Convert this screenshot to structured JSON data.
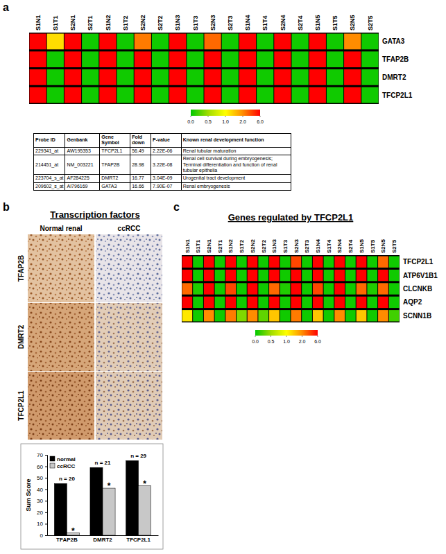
{
  "panel_labels": [
    "a",
    "b",
    "c"
  ],
  "chart_data": [
    {
      "type": "heatmap",
      "categories": [
        "S1N1",
        "S1T1",
        "S2N1",
        "S2T1",
        "S1N2",
        "S1T2",
        "S2N2",
        "S2T2",
        "S1N3",
        "S1T3",
        "S2N3",
        "S2T3",
        "S1N4",
        "S1T4",
        "S2N4",
        "S2T4",
        "S1N5",
        "S1T5",
        "S2N5",
        "S2T5"
      ],
      "rows": [
        "GATA3",
        "TFAP2B",
        "DMRT2",
        "TFCP2L1"
      ],
      "cells": [
        [
          6,
          1.3,
          6,
          0.05,
          6,
          0.05,
          2.5,
          0.05,
          6,
          0.05,
          3,
          0.05,
          6,
          0.05,
          6,
          0.05,
          6,
          0.05,
          2,
          0.05
        ],
        [
          6,
          0.05,
          6,
          0.05,
          6,
          0.05,
          6,
          0.05,
          6,
          0.05,
          6,
          0.05,
          6,
          0.05,
          6,
          0.05,
          6,
          0.05,
          6,
          0.05
        ],
        [
          6,
          0.05,
          6,
          0.05,
          6,
          0.05,
          6,
          0.05,
          6,
          0.05,
          6,
          0.05,
          6,
          0.05,
          6,
          0.05,
          6,
          0.05,
          6,
          0.05
        ],
        [
          6,
          0.05,
          6,
          0.05,
          6,
          0.05,
          6,
          0.05,
          6,
          0.05,
          6,
          0.05,
          6,
          0.05,
          6,
          0.05,
          6,
          0.05,
          6,
          0.05
        ]
      ],
      "colorbar": {
        "range": [
          0,
          6
        ],
        "ticks": [
          {
            "value": 0,
            "label": "0.0"
          },
          {
            "value": 0.5,
            "label": "0.5"
          },
          {
            "value": 1,
            "label": "1.0"
          },
          {
            "value": 2,
            "label": "2.0"
          },
          {
            "value": 6,
            "label": "6.0"
          }
        ]
      }
    },
    {
      "type": "bar",
      "categories": [
        "TFAP2B",
        "DMRT2",
        "TFCP2L1"
      ],
      "series": [
        {
          "name": "normal",
          "color": "#000000",
          "values": [
            45,
            59,
            65
          ]
        },
        {
          "name": "ccRCC",
          "color": "#c8c8c8",
          "values": [
            2,
            41,
            43
          ]
        }
      ],
      "ylabel": "Sum Score",
      "ylim": [
        0,
        70
      ],
      "yticks": [
        0,
        10,
        20,
        30,
        40,
        50,
        60,
        70
      ],
      "legend": "top-left",
      "annotations": [
        "n = 20",
        "n = 21",
        "n = 29"
      ],
      "significance_labels": [
        "*",
        "*",
        "*"
      ]
    },
    {
      "type": "heatmap",
      "title": "Genes regulated by TFCP2L1",
      "categories": [
        "S1N1",
        "S1T1",
        "S2N1",
        "S2T1",
        "S1N2",
        "S1T2",
        "S2N2",
        "S2T2",
        "S1N3",
        "S1T3",
        "S2N3",
        "S2T3",
        "S1N4",
        "S1T4",
        "S2N4",
        "S2T4",
        "S1N5",
        "S1T5",
        "S2N5",
        "S2T5"
      ],
      "rows": [
        "TFCP2L1",
        "ATP6V1B1",
        "CLCNKB",
        "AQP2",
        "SCNN1B"
      ],
      "cells": [
        [
          6,
          0.05,
          6,
          0.05,
          6,
          0.05,
          6,
          0.05,
          6,
          0.05,
          4,
          0.05,
          6,
          0.05,
          6,
          0.05,
          6,
          0.05,
          3,
          0.05
        ],
        [
          6,
          0.05,
          6,
          0.05,
          6,
          0.05,
          6,
          0.05,
          6,
          0.05,
          6,
          0.05,
          6,
          0.05,
          6,
          0.05,
          6,
          0.05,
          6,
          0.05
        ],
        [
          3,
          0.1,
          6,
          0.05,
          4,
          0.05,
          6,
          0.05,
          3,
          0.1,
          6,
          0.05,
          4,
          0.05,
          6,
          0.05,
          3,
          0.1,
          3,
          0.05
        ],
        [
          6,
          0.05,
          6,
          0.05,
          6,
          0.05,
          6,
          0.05,
          6,
          0.05,
          6,
          0.05,
          6,
          0.05,
          6,
          0.05,
          6,
          0.05,
          6,
          0.05
        ],
        [
          1.2,
          0.05,
          2,
          0.05,
          2.5,
          0.4,
          2,
          0.3,
          1.5,
          0.05,
          2.5,
          0.05,
          1.5,
          0.05,
          2,
          0.05,
          1.5,
          0.05,
          2,
          0.2
        ]
      ],
      "colorbar": {
        "range": [
          0,
          6
        ],
        "ticks": [
          {
            "value": 0,
            "label": "0.0"
          },
          {
            "value": 0.5,
            "label": "0.5"
          },
          {
            "value": 1,
            "label": "1.0"
          },
          {
            "value": 2,
            "label": "2.0"
          },
          {
            "value": 6,
            "label": "6.0"
          }
        ]
      }
    }
  ],
  "table": {
    "header": [
      "Probe ID",
      "Genbank",
      "Gene Symbol",
      "Fold down",
      "P-value",
      "Known renal development function"
    ],
    "rows": [
      [
        "229341_at",
        "AW195353",
        "TFCP2L1",
        "56.49",
        "2.22E-06",
        "Renal tubular maturation"
      ],
      [
        "214451_at",
        "NM_003221",
        "TFAP2B",
        "28.98",
        "3.22E-08",
        "Renal cell survival during embryogenesis; Terminal differentiation and function of renal tubular epithelia"
      ],
      [
        "223704_s_at",
        "AF284225",
        "DMRT2",
        "16.77",
        "3.04E-09",
        "Urogenital tract development"
      ],
      [
        "209602_s_at",
        "AI796169",
        "GATA3",
        "16.66",
        "7.90E-07",
        "Renal embryogenesis"
      ]
    ]
  },
  "ihc": {
    "title": "Transcription factors",
    "columns": [
      "Normal renal",
      "ccRCC"
    ],
    "rows": [
      "TFAP2B",
      "DMRT2",
      "TFCP2L1"
    ]
  }
}
